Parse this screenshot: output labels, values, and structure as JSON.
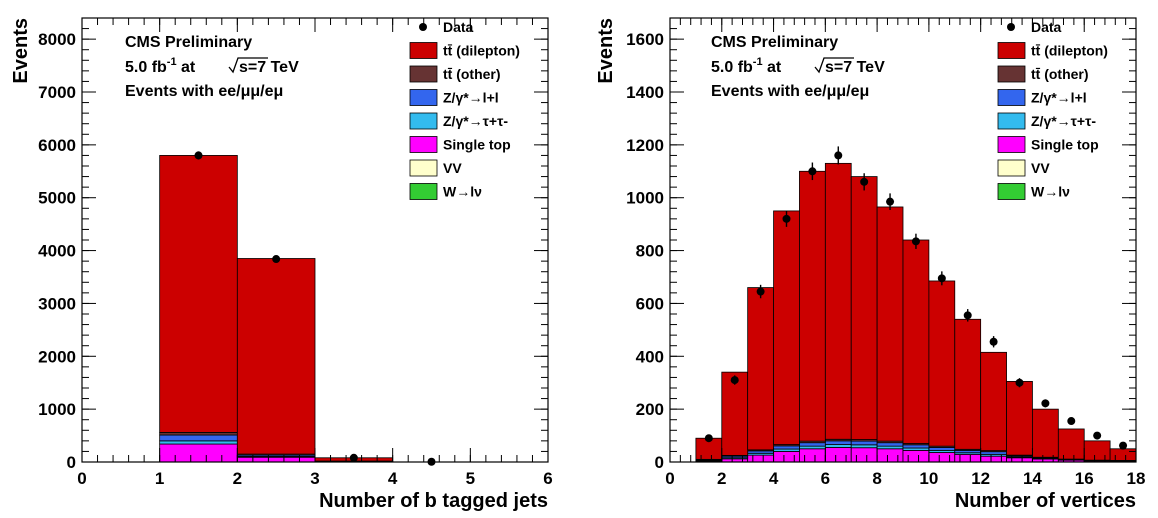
{
  "chart_data": [
    {
      "type": "bar",
      "stacked": true,
      "xlabel": "Number of b tagged jets",
      "ylabel": "Events",
      "xlim": [
        0,
        6
      ],
      "ylim": [
        0,
        8400
      ],
      "xticks": [
        "0",
        "1",
        "2",
        "3",
        "4",
        "5",
        "6"
      ],
      "yticks": [
        "0",
        "1000",
        "2000",
        "3000",
        "4000",
        "5000",
        "6000",
        "7000",
        "8000"
      ],
      "annotations": [
        "CMS Preliminary",
        "5.0 fb",
        "-1",
        "at",
        "s=7 TeV",
        "Events with ee/μμ/eμ"
      ],
      "bin_edges": [
        0,
        1,
        2,
        3,
        4,
        5,
        6
      ],
      "series": [
        {
          "name": "Single top",
          "values": [
            0,
            340,
            90,
            8,
            0,
            0
          ]
        },
        {
          "name": "Z/γ*→τ+τ-",
          "values": [
            0,
            60,
            15,
            2,
            0,
            0
          ]
        },
        {
          "name": "Z/γ*→l+l",
          "values": [
            0,
            110,
            25,
            3,
            0,
            0
          ]
        },
        {
          "name": "tt̄ (other)",
          "values": [
            0,
            50,
            20,
            5,
            0,
            0
          ]
        },
        {
          "name": "tt̄ (dilepton)",
          "values": [
            0,
            5240,
            3700,
            62,
            0,
            0
          ]
        }
      ],
      "data_points": [
        {
          "x": 1.5,
          "y": 5800
        },
        {
          "x": 2.5,
          "y": 3840
        },
        {
          "x": 3.5,
          "y": 80
        },
        {
          "x": 4.5,
          "y": 5
        }
      ]
    },
    {
      "type": "bar",
      "stacked": true,
      "xlabel": "Number of vertices",
      "ylabel": "Events",
      "xlim": [
        0,
        18
      ],
      "ylim": [
        0,
        1680
      ],
      "xticks": [
        "0",
        "2",
        "4",
        "6",
        "8",
        "10",
        "12",
        "14",
        "16",
        "18"
      ],
      "yticks": [
        "0",
        "200",
        "400",
        "600",
        "800",
        "1000",
        "1200",
        "1400",
        "1600"
      ],
      "annotations": [
        "CMS Preliminary",
        "5.0 fb",
        "-1",
        "at",
        "s=7 TeV",
        "Events with ee/μμ/eμ"
      ],
      "bin_edges": [
        1,
        2,
        3,
        4,
        5,
        6,
        7,
        8,
        9,
        10,
        11,
        12,
        13,
        14,
        15,
        16,
        17,
        18
      ],
      "series": [
        {
          "name": "Single top",
          "values": [
            3,
            12,
            26,
            40,
            50,
            55,
            54,
            50,
            44,
            36,
            29,
            22,
            16,
            11,
            7,
            4,
            3
          ]
        },
        {
          "name": "Z/γ*→τ+τ-",
          "values": [
            2,
            4,
            7,
            9,
            10,
            11,
            11,
            10,
            9,
            8,
            6,
            7,
            3,
            2,
            1,
            1,
            1
          ]
        },
        {
          "name": "Z/γ*→l+l",
          "values": [
            3,
            6,
            9,
            12,
            13,
            14,
            14,
            13,
            12,
            11,
            9,
            10,
            4,
            3,
            2,
            1,
            1
          ]
        },
        {
          "name": "tt̄ (other)",
          "values": [
            2,
            3,
            4,
            5,
            6,
            6,
            6,
            6,
            5,
            5,
            4,
            4,
            3,
            2,
            1,
            1,
            1
          ]
        },
        {
          "name": "tt̄ (dilepton)",
          "values": [
            80,
            315,
            614,
            884,
            1021,
            1044,
            995,
            886,
            770,
            625,
            492,
            372,
            279,
            182,
            114,
            73,
            44
          ]
        }
      ],
      "data_points": [
        {
          "x": 1.5,
          "y": 90
        },
        {
          "x": 2.5,
          "y": 310
        },
        {
          "x": 3.5,
          "y": 645
        },
        {
          "x": 4.5,
          "y": 920
        },
        {
          "x": 5.5,
          "y": 1100
        },
        {
          "x": 6.5,
          "y": 1160
        },
        {
          "x": 7.5,
          "y": 1060
        },
        {
          "x": 8.5,
          "y": 985
        },
        {
          "x": 9.5,
          "y": 835
        },
        {
          "x": 10.5,
          "y": 695
        },
        {
          "x": 11.5,
          "y": 555
        },
        {
          "x": 12.5,
          "y": 455
        },
        {
          "x": 13.5,
          "y": 300
        },
        {
          "x": 14.5,
          "y": 222
        },
        {
          "x": 15.5,
          "y": 155
        },
        {
          "x": 16.5,
          "y": 100
        },
        {
          "x": 17.5,
          "y": 62
        }
      ]
    }
  ],
  "legend": [
    {
      "label": "Data",
      "kind": "marker",
      "color": "#000000"
    },
    {
      "label": "tt̄ (dilepton)",
      "color": "#cc0000"
    },
    {
      "label": "tt̄ (other)",
      "color": "#663333"
    },
    {
      "label": "Z/γ*→l+l",
      "color": "#3366ee"
    },
    {
      "label": "Z/γ*→τ+τ-",
      "color": "#33bbee"
    },
    {
      "label": "Single top",
      "color": "#ff00ff"
    },
    {
      "label": "VV",
      "color": "#ffffcc"
    },
    {
      "label": "W→lν",
      "color": "#33cc33"
    }
  ]
}
